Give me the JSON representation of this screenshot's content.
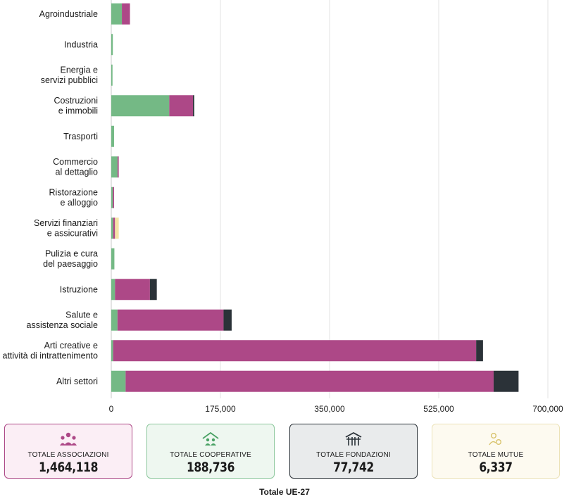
{
  "chart_data": {
    "type": "bar",
    "orientation": "horizontal",
    "stacked": true,
    "categories": [
      [
        "Agroindustriale"
      ],
      [
        "Industria"
      ],
      [
        "Energia e",
        "servizi pubblici"
      ],
      [
        "Costruzioni",
        "e immobili"
      ],
      [
        "Trasporti"
      ],
      [
        "Commercio",
        "al dettaglio"
      ],
      [
        "Ristorazione",
        "e alloggio"
      ],
      [
        "Servizi finanziari",
        "e assicurativi"
      ],
      [
        "Pulizia e cura",
        "del paesaggio"
      ],
      [
        "Istruzione"
      ],
      [
        "Salute e",
        "assistenza sociale"
      ],
      [
        "Arti creative e",
        "attività di intrattenimento"
      ],
      [
        "Altri settori"
      ]
    ],
    "series": [
      {
        "name": "Cooperative",
        "color": "#74b985",
        "values": [
          17000,
          2500,
          2000,
          93000,
          4500,
          10000,
          2500,
          3000,
          5000,
          6000,
          10000,
          3000,
          23000
        ]
      },
      {
        "name": "Associazioni",
        "color": "#ad4887",
        "values": [
          13000,
          0,
          0,
          38000,
          0,
          2000,
          2000,
          3000,
          0,
          56000,
          170000,
          582000,
          590000
        ]
      },
      {
        "name": "Fondazioni",
        "color": "#2b3238",
        "values": [
          0,
          0,
          0,
          2000,
          0,
          0,
          0,
          0,
          0,
          11000,
          13000,
          11000,
          40000
        ]
      },
      {
        "name": "Mutue",
        "color": "#f5e3a6",
        "values": [
          0,
          0,
          0,
          0,
          0,
          0,
          0,
          6000,
          0,
          0,
          0,
          0,
          0
        ]
      }
    ],
    "xlim": [
      0,
      700000
    ],
    "xticks": [
      "0",
      "175,000",
      "350,000",
      "525,000",
      "700,000"
    ],
    "xtick_values": [
      0,
      175000,
      350000,
      525000,
      700000
    ],
    "grid": true
  },
  "summary": {
    "associazioni": {
      "label": "TOTALE ASSOCIAZIONI",
      "value": "1,464,118",
      "bg": "#fbeef5",
      "border": "#ad4887",
      "icon_color": "#ad4887",
      "icon": "people-icon"
    },
    "cooperative": {
      "label": "TOTALE COOPERATIVE",
      "value": "188,736",
      "bg": "#eef7f0",
      "border": "#8cc79c",
      "icon_color": "#4aa265",
      "icon": "house-people-icon"
    },
    "fondazioni": {
      "label": "TOTALE FONDAZIONI",
      "value": "77,742",
      "bg": "#e9ebec",
      "border": "#2b3238",
      "icon_color": "#2b3238",
      "icon": "building-icon"
    },
    "mutue": {
      "label": "TOTALE MUTUE",
      "value": "6,337",
      "bg": "#fdfaf0",
      "border": "#ece2b8",
      "icon_color": "#d8c36c",
      "icon": "coins-icon"
    }
  },
  "footer": "Totale UE-27"
}
